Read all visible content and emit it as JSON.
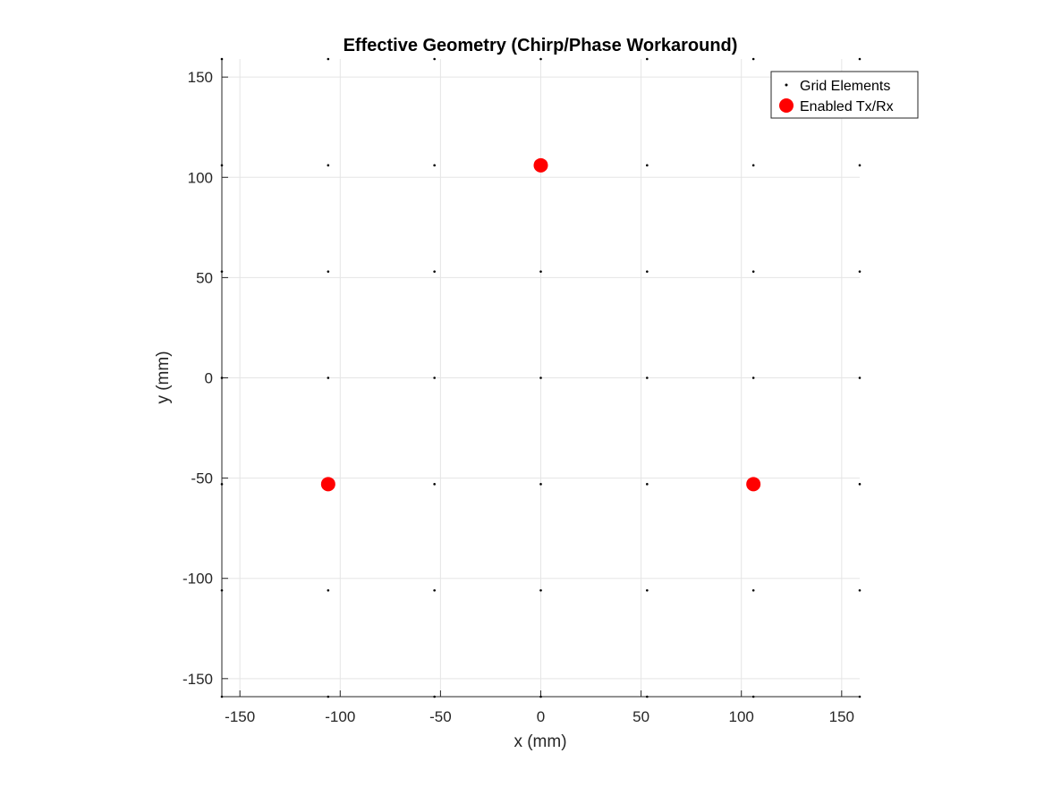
{
  "chart_data": {
    "type": "scatter",
    "title": "Effective Geometry (Chirp/Phase Workaround)",
    "xlabel": "x (mm)",
    "ylabel": "y (mm)",
    "xlim": [
      -159,
      159
    ],
    "ylim": [
      -159,
      159
    ],
    "xticks": [
      -150,
      -100,
      -50,
      0,
      50,
      100,
      150
    ],
    "yticks": [
      -150,
      -100,
      -50,
      0,
      50,
      100,
      150
    ],
    "grid": true,
    "legend_position": "top-right",
    "legend": [
      "Grid Elements",
      "Enabled Tx/Rx"
    ],
    "series": [
      {
        "name": "Grid Elements",
        "marker": "dot",
        "color": "#000000",
        "x_values": [
          -159,
          -106,
          -53,
          0,
          53,
          106,
          159
        ],
        "y_values": [
          -159,
          -106,
          -53,
          0,
          53,
          106,
          159
        ]
      },
      {
        "name": "Enabled Tx/Rx",
        "marker": "circle",
        "color": "#ff0000",
        "points": [
          {
            "x": 0,
            "y": 106
          },
          {
            "x": -106,
            "y": -53
          },
          {
            "x": 106,
            "y": -53
          }
        ]
      }
    ]
  }
}
